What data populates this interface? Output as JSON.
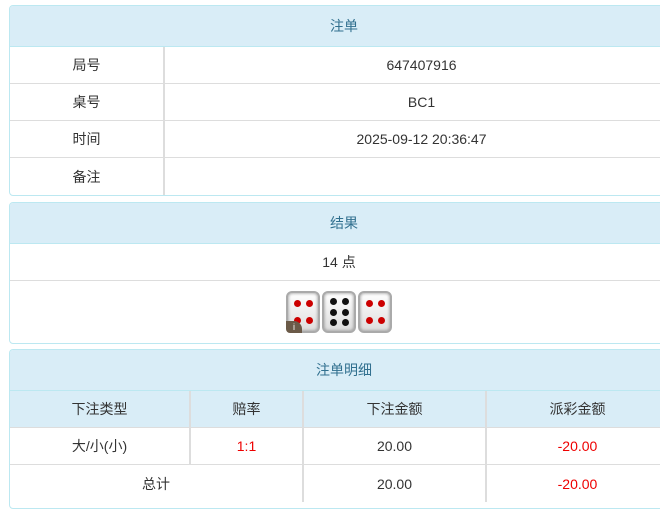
{
  "order": {
    "title": "注单",
    "rows": [
      {
        "label": "局号",
        "value": "647407916"
      },
      {
        "label": "桌号",
        "value": "BC1"
      },
      {
        "label": "时间",
        "value": "2025-09-12 20:36:47"
      },
      {
        "label": "备注",
        "value": ""
      }
    ]
  },
  "result": {
    "title": "结果",
    "points": "14 点",
    "dice": [
      4,
      6,
      4
    ],
    "badge": "i"
  },
  "detail": {
    "title": "注单明细",
    "headers": [
      "下注类型",
      "赔率",
      "下注金额",
      "派彩金额"
    ],
    "rows": [
      {
        "type": "大/小(小)",
        "odds": "1:1",
        "bet": "20.00",
        "payout": "-20.00"
      }
    ],
    "total": {
      "label": "总计",
      "bet": "20.00",
      "payout": "-20.00"
    }
  },
  "colors": {
    "header_bg": "#d9edf7",
    "header_text": "#31708f",
    "negative": "#e00000"
  }
}
